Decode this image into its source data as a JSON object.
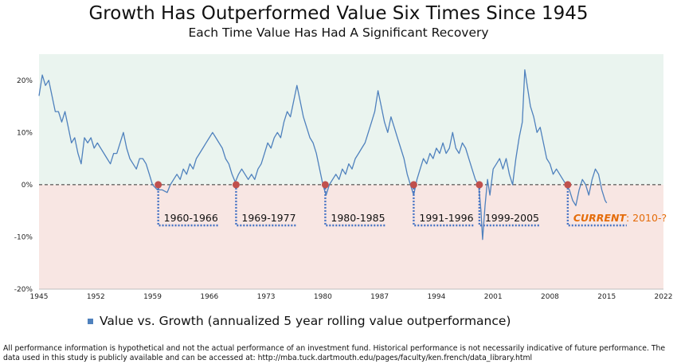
{
  "header": {
    "title": "Growth Has Outperformed Value Six Times Since 1945",
    "subtitle": "Each Time Value Has Had A Significant Recovery"
  },
  "legend": {
    "label": "Value vs. Growth (annualized 5 year rolling value outperformance)"
  },
  "footnote": "All performance information is hypothetical and not the actual performance of an investment fund. Historical performance is not necessarily indicative of future performance. The data used in this study is publicly available and can be accessed at: http://mba.tuck.dartmouth.edu/pages/faculty/ken.french/data_library.html",
  "colors": {
    "line": "#4f81bd",
    "positive_band": "#eaf4ef",
    "negative_band": "#f8e6e3",
    "marker": "#c0504d",
    "bracket": "#4472c4",
    "current_label": "#e46c0a"
  },
  "chart_data": {
    "type": "line",
    "title": "Growth Has Outperformed Value Six Times Since 1945",
    "subtitle": "Each Time Value Has Had A Significant Recovery",
    "xlim": [
      1945,
      2022
    ],
    "ylim": [
      -20,
      25
    ],
    "x_ticks": [
      1945,
      1952,
      1959,
      1966,
      1973,
      1980,
      1987,
      1994,
      2001,
      2008,
      2015,
      2022
    ],
    "y_ticks": [
      -20,
      -10,
      0,
      10,
      20
    ],
    "y_tick_labels": [
      "-20%",
      "-10%",
      "0%",
      "10%",
      "20%"
    ],
    "x_tick_labels": [
      "1945",
      "1952",
      "1959",
      "1966",
      "1973",
      "1980",
      "1987",
      "1994",
      "2001",
      "2008",
      "2015",
      "2022"
    ],
    "grid": false,
    "legend_position": "bottom",
    "series": [
      {
        "name": "Value vs. Growth (annualized 5 year rolling value outperformance)",
        "points": [
          [
            1945.0,
            17
          ],
          [
            1945.4,
            21
          ],
          [
            1945.8,
            19
          ],
          [
            1946.2,
            20
          ],
          [
            1946.6,
            17
          ],
          [
            1947.0,
            14
          ],
          [
            1947.4,
            14
          ],
          [
            1947.8,
            12
          ],
          [
            1948.2,
            14
          ],
          [
            1948.6,
            11
          ],
          [
            1949.0,
            8
          ],
          [
            1949.4,
            9
          ],
          [
            1949.8,
            6
          ],
          [
            1950.2,
            4
          ],
          [
            1950.6,
            9
          ],
          [
            1951.0,
            8
          ],
          [
            1951.4,
            9
          ],
          [
            1951.8,
            7
          ],
          [
            1952.2,
            8
          ],
          [
            1952.6,
            7
          ],
          [
            1953.0,
            6
          ],
          [
            1953.4,
            5
          ],
          [
            1953.8,
            4
          ],
          [
            1954.2,
            6
          ],
          [
            1954.6,
            6
          ],
          [
            1955.0,
            8
          ],
          [
            1955.4,
            10
          ],
          [
            1955.8,
            7
          ],
          [
            1956.2,
            5
          ],
          [
            1956.6,
            4
          ],
          [
            1957.0,
            3
          ],
          [
            1957.4,
            5
          ],
          [
            1957.8,
            5
          ],
          [
            1958.2,
            4
          ],
          [
            1958.6,
            2
          ],
          [
            1959.0,
            0
          ],
          [
            1959.6,
            -1
          ],
          [
            1960.2,
            -1
          ],
          [
            1960.8,
            -1.5
          ],
          [
            1961.2,
            0
          ],
          [
            1961.6,
            1
          ],
          [
            1962.0,
            2
          ],
          [
            1962.4,
            1
          ],
          [
            1962.8,
            3
          ],
          [
            1963.2,
            2
          ],
          [
            1963.6,
            4
          ],
          [
            1964.0,
            3
          ],
          [
            1964.4,
            5
          ],
          [
            1964.8,
            6
          ],
          [
            1965.2,
            7
          ],
          [
            1965.6,
            8
          ],
          [
            1966.0,
            9
          ],
          [
            1966.4,
            10
          ],
          [
            1966.8,
            9
          ],
          [
            1967.2,
            8
          ],
          [
            1967.6,
            7
          ],
          [
            1968.0,
            5
          ],
          [
            1968.4,
            4
          ],
          [
            1968.8,
            2
          ],
          [
            1969.2,
            0.5
          ],
          [
            1969.6,
            2
          ],
          [
            1970.0,
            3
          ],
          [
            1970.4,
            2
          ],
          [
            1970.8,
            1
          ],
          [
            1971.2,
            2
          ],
          [
            1971.6,
            1
          ],
          [
            1972.0,
            3
          ],
          [
            1972.4,
            4
          ],
          [
            1972.8,
            6
          ],
          [
            1973.2,
            8
          ],
          [
            1973.6,
            7
          ],
          [
            1974.0,
            9
          ],
          [
            1974.4,
            10
          ],
          [
            1974.8,
            9
          ],
          [
            1975.2,
            12
          ],
          [
            1975.6,
            14
          ],
          [
            1976.0,
            13
          ],
          [
            1976.4,
            16
          ],
          [
            1976.8,
            19
          ],
          [
            1977.2,
            16
          ],
          [
            1977.6,
            13
          ],
          [
            1978.0,
            11
          ],
          [
            1978.4,
            9
          ],
          [
            1978.8,
            8
          ],
          [
            1979.2,
            6
          ],
          [
            1979.6,
            3
          ],
          [
            1980.0,
            0
          ],
          [
            1980.4,
            -2
          ],
          [
            1980.8,
            0
          ],
          [
            1981.2,
            1
          ],
          [
            1981.6,
            2
          ],
          [
            1982.0,
            1
          ],
          [
            1982.4,
            3
          ],
          [
            1982.8,
            2
          ],
          [
            1983.2,
            4
          ],
          [
            1983.6,
            3
          ],
          [
            1984.0,
            5
          ],
          [
            1984.4,
            6
          ],
          [
            1984.8,
            7
          ],
          [
            1985.2,
            8
          ],
          [
            1985.6,
            10
          ],
          [
            1986.0,
            12
          ],
          [
            1986.4,
            14
          ],
          [
            1986.8,
            18
          ],
          [
            1987.2,
            15
          ],
          [
            1987.6,
            12
          ],
          [
            1988.0,
            10
          ],
          [
            1988.4,
            13
          ],
          [
            1988.8,
            11
          ],
          [
            1989.2,
            9
          ],
          [
            1989.6,
            7
          ],
          [
            1990.0,
            5
          ],
          [
            1990.4,
            2
          ],
          [
            1990.8,
            0
          ],
          [
            1991.2,
            -2
          ],
          [
            1991.6,
            1
          ],
          [
            1992.0,
            3
          ],
          [
            1992.4,
            5
          ],
          [
            1992.8,
            4
          ],
          [
            1993.2,
            6
          ],
          [
            1993.6,
            5
          ],
          [
            1994.0,
            7
          ],
          [
            1994.4,
            6
          ],
          [
            1994.8,
            8
          ],
          [
            1995.2,
            6
          ],
          [
            1995.6,
            7
          ],
          [
            1996.0,
            10
          ],
          [
            1996.4,
            7
          ],
          [
            1996.8,
            6
          ],
          [
            1997.2,
            8
          ],
          [
            1997.6,
            7
          ],
          [
            1998.0,
            5
          ],
          [
            1998.4,
            3
          ],
          [
            1998.8,
            1
          ],
          [
            1999.2,
            0
          ],
          [
            1999.5,
            -5
          ],
          [
            1999.7,
            -10.5
          ],
          [
            2000.0,
            -4
          ],
          [
            2000.3,
            1
          ],
          [
            2000.6,
            -2
          ],
          [
            2001.0,
            3
          ],
          [
            2001.4,
            4
          ],
          [
            2001.8,
            5
          ],
          [
            2002.2,
            3
          ],
          [
            2002.6,
            5
          ],
          [
            2003.0,
            2
          ],
          [
            2003.4,
            0
          ],
          [
            2003.8,
            5
          ],
          [
            2004.2,
            9
          ],
          [
            2004.6,
            12
          ],
          [
            2004.9,
            22
          ],
          [
            2005.2,
            19
          ],
          [
            2005.6,
            15
          ],
          [
            2006.0,
            13
          ],
          [
            2006.4,
            10
          ],
          [
            2006.8,
            11
          ],
          [
            2007.2,
            8
          ],
          [
            2007.6,
            5
          ],
          [
            2008.0,
            4
          ],
          [
            2008.4,
            2
          ],
          [
            2008.8,
            3
          ],
          [
            2009.2,
            2
          ],
          [
            2009.6,
            1
          ],
          [
            2010.0,
            0
          ],
          [
            2010.4,
            -1
          ],
          [
            2010.8,
            -3
          ],
          [
            2011.2,
            -4
          ],
          [
            2011.6,
            -1
          ],
          [
            2012.0,
            1
          ],
          [
            2012.4,
            0
          ],
          [
            2012.8,
            -2
          ],
          [
            2013.2,
            1
          ],
          [
            2013.6,
            3
          ],
          [
            2014.0,
            2
          ],
          [
            2014.4,
            -1
          ],
          [
            2014.8,
            -3
          ],
          [
            2015.0,
            -3.5
          ]
        ]
      }
    ],
    "periods": [
      {
        "label": "1960-1966",
        "start": 1959.7
      },
      {
        "label": "1969-1977",
        "start": 1969.3
      },
      {
        "label": "1980-1985",
        "start": 1980.3
      },
      {
        "label": "1991-1996",
        "start": 1991.2
      },
      {
        "label": "1999-2005",
        "start": 1999.3
      },
      {
        "label_emphasis": "CURRENT",
        "label_rest": ": 2010-?",
        "start": 2010.2
      }
    ]
  }
}
